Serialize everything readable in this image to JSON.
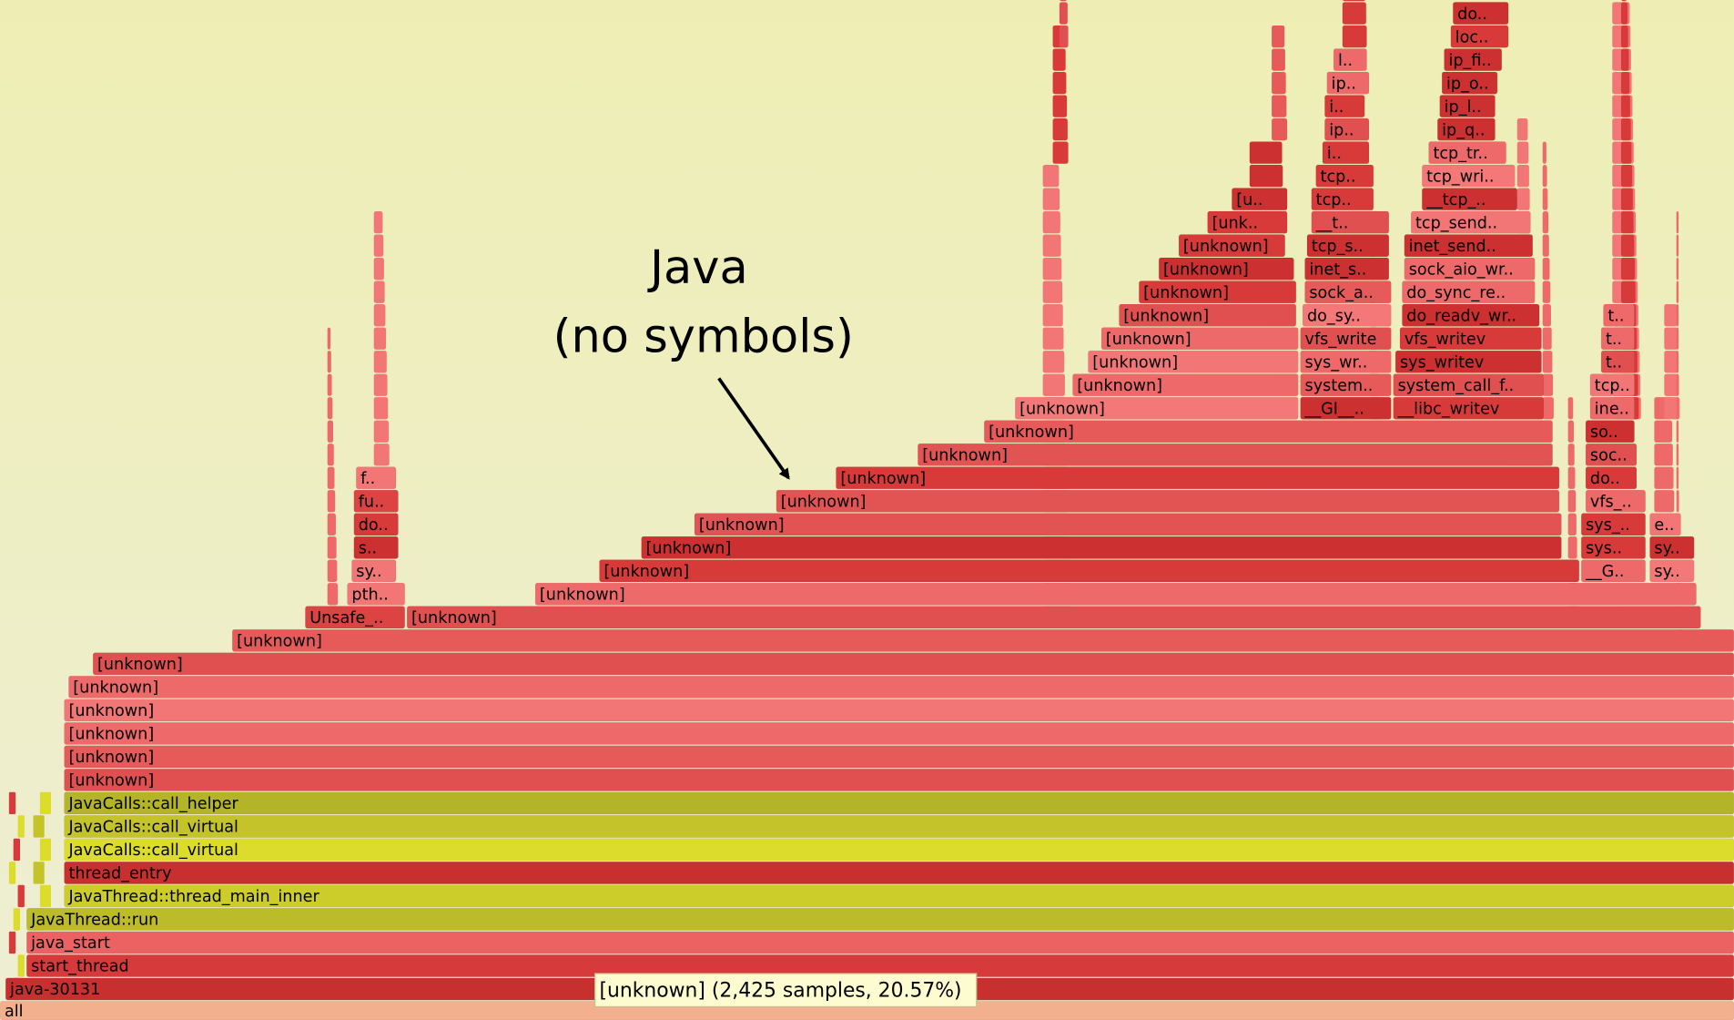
{
  "frames": [
    "all",
    "java-30131",
    "start_thread",
    "java_start",
    "JavaThread::run",
    "JavaThread::thread_main_inner",
    "thread_entry",
    "JavaCalls::call_virtual",
    "JavaCalls::call_virtual",
    "JavaCalls::call_helper",
    "[unknown]",
    "[unknown]",
    "[unknown]",
    "[unknown]",
    "[unknown]",
    "[unknown]",
    "[unknown]",
    "Unsafe_..",
    "[unknown]",
    "pth..",
    "[unknown]",
    "sy..",
    "[unknown]",
    "__G..",
    "sy..",
    "s..",
    "[unknown]",
    "sys..",
    "sy..",
    "do..",
    "[unknown]",
    "sys_..",
    "e..",
    "fu..",
    "[unknown]",
    "vfs_..",
    "f..",
    "[unknown]",
    "do..",
    "[unknown]",
    "soc..",
    "[unknown]",
    "so..",
    "[unknown]",
    "__GI__..",
    "__libc_writev",
    "ine..",
    "[unknown]",
    "system..",
    "system_call_f..",
    "tcp..",
    "[unknown]",
    "sys_wr..",
    "sys_writev",
    "t..",
    "[unknown]",
    "vfs_write",
    "vfs_writev",
    "t..",
    "[unknown]",
    "do_sy..",
    "do_readv_wr..",
    "t..",
    "[unknown]",
    "sock_a..",
    "do_sync_re..",
    "[unknown]",
    "inet_s..",
    "sock_aio_wr..",
    "[unknown]",
    "tcp_s..",
    "inet_send..",
    "[unk..",
    "__t..",
    "tcp_send..",
    "[u..",
    "tcp..",
    "__tcp_..",
    "tcp..",
    "tcp_wri..",
    "i..",
    "tcp_tr..",
    "ip..",
    "ip_q..",
    "i..",
    "ip_l..",
    "ip..",
    "ip_o..",
    "l..",
    "ip_fi..",
    "loc..",
    "do.."
  ],
  "annotation": {
    "line1": "Java",
    "line2": "(no symbols)"
  },
  "tooltip": "[unknown] (2,425 samples, 20.57%)"
}
